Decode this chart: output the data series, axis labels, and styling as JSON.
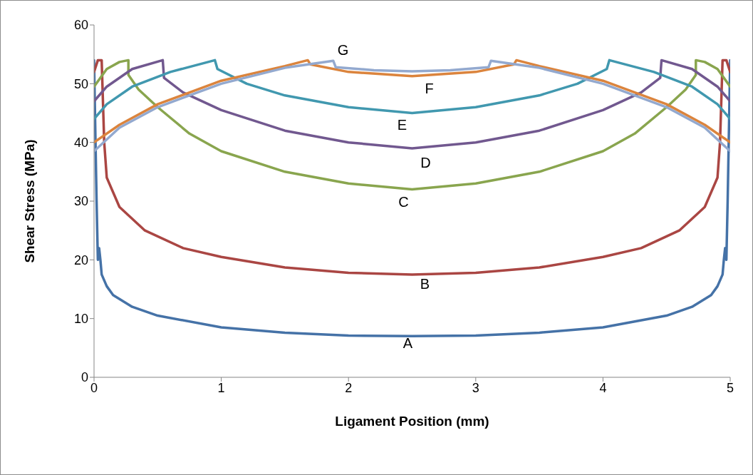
{
  "chart_data": {
    "type": "line",
    "xlabel": "Ligament Position (mm)",
    "ylabel": "Shear Stress (MPa)",
    "xlim": [
      0,
      5
    ],
    "xticks": [
      0,
      1,
      2,
      3,
      4,
      5
    ],
    "ylim": [
      0,
      60
    ],
    "yticks": [
      0,
      10,
      20,
      30,
      40,
      50,
      60
    ],
    "grid": false,
    "marker": "none",
    "line_style": "solid",
    "series": [
      {
        "name": "A",
        "color": "#4572a7",
        "x": [
          0,
          0.02,
          0.03,
          0.04,
          0.05,
          0.06,
          0.1,
          0.15,
          0.3,
          0.5,
          1,
          1.5,
          2,
          2.5,
          3,
          3.5,
          4,
          4.5,
          4.7,
          4.85,
          4.9,
          4.94,
          4.95,
          4.96,
          4.97,
          4.98,
          5
        ],
        "values": [
          54,
          30,
          20,
          22,
          20,
          17.5,
          15.5,
          14,
          12,
          10.5,
          8.5,
          7.6,
          7.1,
          7,
          7.1,
          7.6,
          8.5,
          10.5,
          12,
          14,
          15.5,
          17.5,
          20,
          22,
          20,
          30,
          54
        ]
      },
      {
        "name": "B",
        "color": "#aa4643",
        "x": [
          0,
          0.03,
          0.06,
          0.08,
          0.1,
          0.2,
          0.4,
          0.7,
          1,
          1.5,
          2,
          2.5,
          3,
          3.5,
          4,
          4.3,
          4.6,
          4.8,
          4.9,
          4.92,
          4.94,
          4.97,
          5
        ],
        "values": [
          52,
          54,
          54,
          40,
          34,
          29,
          25,
          22,
          20.5,
          18.7,
          17.8,
          17.5,
          17.8,
          18.7,
          20.5,
          22,
          25,
          29,
          34,
          40,
          54,
          54,
          52
        ]
      },
      {
        "name": "C",
        "color": "#89a54e",
        "x": [
          0,
          0.1,
          0.2,
          0.27,
          0.27,
          0.35,
          0.5,
          0.75,
          1,
          1.5,
          2,
          2.5,
          3,
          3.5,
          4,
          4.25,
          4.5,
          4.65,
          4.73,
          4.73,
          4.8,
          4.9,
          5
        ],
        "values": [
          49.5,
          52.5,
          53.7,
          54,
          51.5,
          49,
          46,
          41.5,
          38.5,
          35,
          33,
          32,
          33,
          35,
          38.5,
          41.5,
          46,
          49,
          51.5,
          54,
          53.7,
          52.5,
          49.5
        ]
      },
      {
        "name": "D",
        "color": "#71588f",
        "x": [
          0,
          0.1,
          0.3,
          0.54,
          0.55,
          0.7,
          1,
          1.5,
          2,
          2.5,
          3,
          3.5,
          4,
          4.3,
          4.45,
          4.46,
          4.7,
          4.9,
          5
        ],
        "values": [
          47,
          49.5,
          52.5,
          54,
          51,
          48.5,
          45.5,
          42,
          40,
          39,
          40,
          42,
          45.5,
          48.5,
          51,
          54,
          52.5,
          49.5,
          47
        ]
      },
      {
        "name": "E",
        "color": "#4198af",
        "x": [
          0,
          0.1,
          0.3,
          0.6,
          0.95,
          0.97,
          1.2,
          1.5,
          2,
          2.5,
          3,
          3.5,
          3.8,
          4.03,
          4.05,
          4.4,
          4.7,
          4.9,
          5
        ],
        "values": [
          44,
          46.5,
          49.5,
          52,
          54,
          52.5,
          50,
          48,
          46,
          45,
          46,
          48,
          50,
          52.5,
          54,
          52,
          49.5,
          46.5,
          44
        ]
      },
      {
        "name": "F",
        "color": "#db843d",
        "x": [
          0,
          0.2,
          0.5,
          1,
          1.5,
          1.68,
          1.7,
          2,
          2.5,
          3,
          3.3,
          3.32,
          3.5,
          4,
          4.5,
          4.8,
          5
        ],
        "values": [
          40,
          43,
          46.5,
          50.5,
          53,
          54,
          53.3,
          52,
          51.3,
          52,
          53.3,
          54,
          53,
          50.5,
          46.5,
          43,
          40
        ]
      },
      {
        "name": "G",
        "color": "#93a9cf",
        "x": [
          0,
          0.2,
          0.5,
          1,
          1.5,
          1.88,
          1.9,
          2.2,
          2.5,
          2.8,
          3.1,
          3.12,
          3.5,
          4,
          4.5,
          4.8,
          5
        ],
        "values": [
          38.5,
          42.5,
          46,
          50,
          52.7,
          53.9,
          52.8,
          52.3,
          52.1,
          52.3,
          52.8,
          53.9,
          52.7,
          50,
          46,
          42.5,
          38.5
        ]
      }
    ]
  }
}
